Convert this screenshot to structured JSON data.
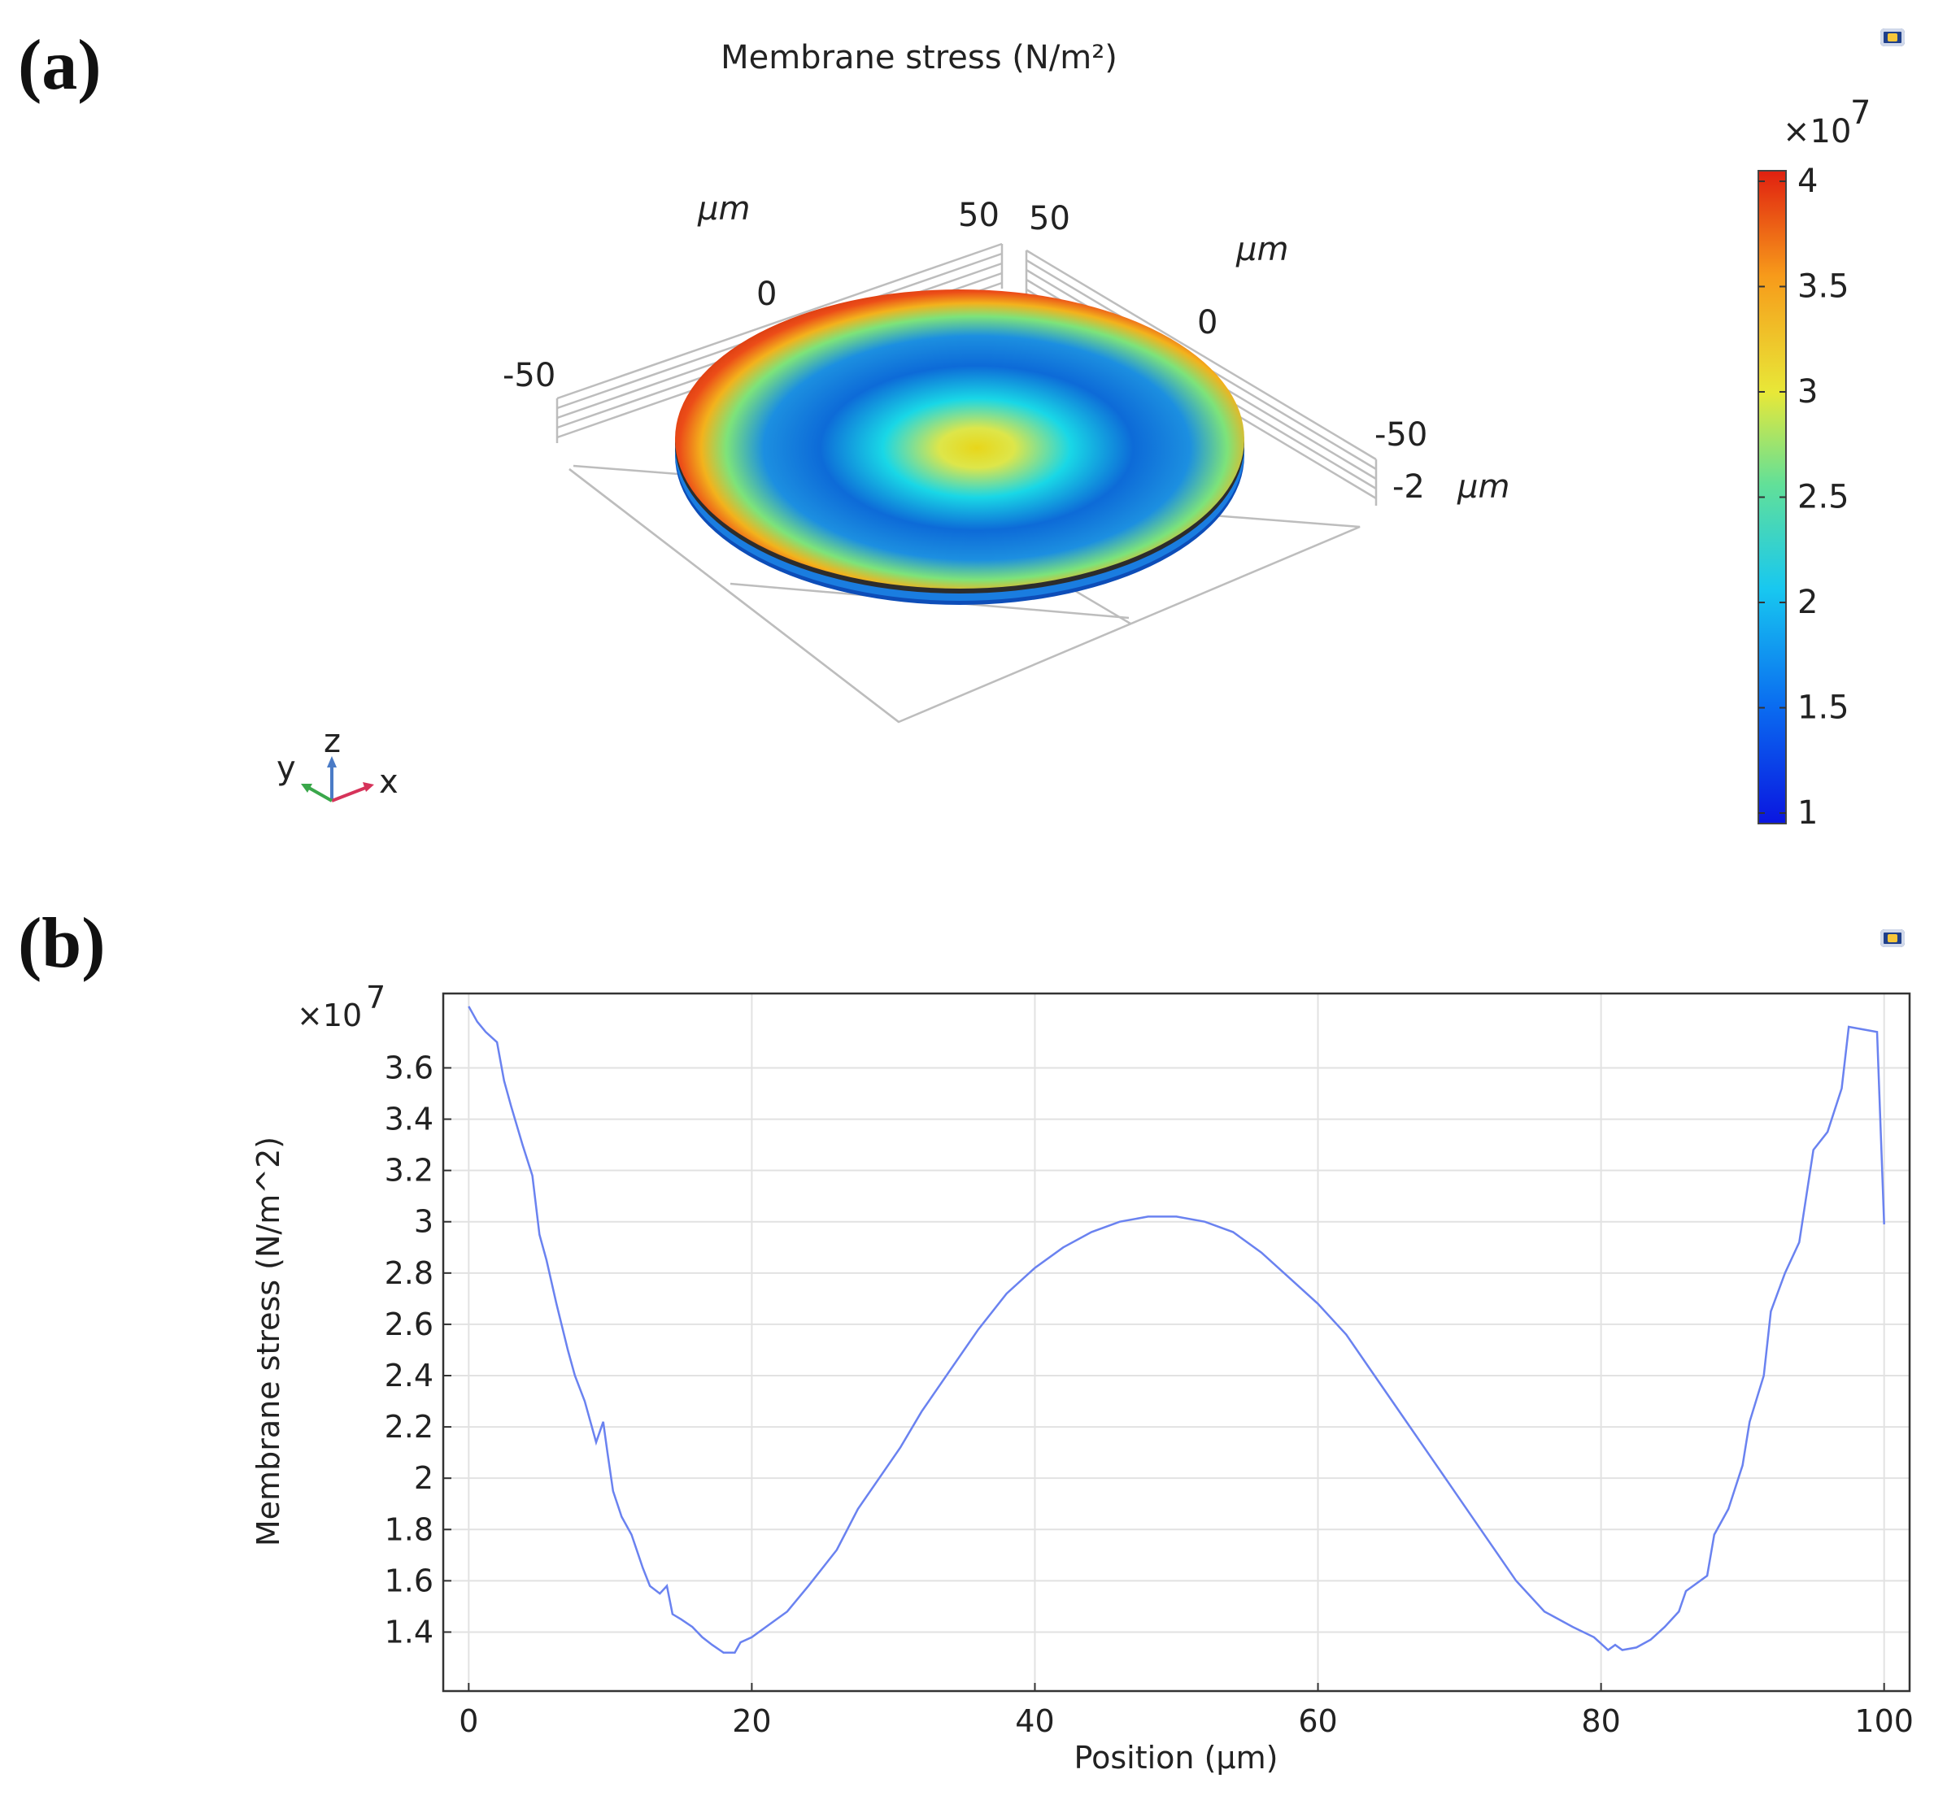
{
  "panels": {
    "a_label": "(a)",
    "b_label": "(b)"
  },
  "panel_a": {
    "title": "Membrane stress (N/m²)",
    "axes": {
      "x_ticks": [
        "-50",
        "0",
        "50"
      ],
      "y_ticks": [
        "50",
        "0",
        "-50"
      ],
      "z_tick": "-2",
      "unit": "μm",
      "triad": {
        "x": "x",
        "y": "y",
        "z": "z"
      }
    },
    "colorbar": {
      "multiplier": "×10",
      "exponent": "7",
      "ticks": [
        "4",
        "3.5",
        "3",
        "2.5",
        "2",
        "1.5",
        "1"
      ],
      "range": [
        0.95,
        4.05
      ],
      "colors": [
        "#0a16e0",
        "#0a6cf0",
        "#18c8f0",
        "#62e098",
        "#e8e838",
        "#f79a1a",
        "#e02010"
      ]
    },
    "disk_colors": {
      "center": "#e2e23a",
      "mid": "#19d7e6",
      "ring": "#0d5bd0",
      "rim": "#f05a18"
    }
  },
  "chart_data": {
    "type": "line",
    "title": "",
    "xlabel": "Position (μm)",
    "ylabel": "Membrane stress   (N/m^2)",
    "multiplier": "×10",
    "multiplier_exp": "7",
    "xlim": [
      -1.8,
      101.8
    ],
    "ylim": [
      1.17,
      3.89
    ],
    "x_ticks": [
      0,
      20,
      40,
      60,
      80,
      100
    ],
    "y_ticks": [
      1.4,
      1.6,
      1.8,
      2.0,
      2.2,
      2.4,
      2.6,
      2.8,
      3.0,
      3.2,
      3.4,
      3.6
    ],
    "y_tick_labels": [
      "1.4",
      "1.6",
      "1.8",
      "2",
      "2.2",
      "2.4",
      "2.6",
      "2.8",
      "3",
      "3.2",
      "3.4",
      "3.6"
    ],
    "grid": true,
    "series": [
      {
        "name": "Membrane stress",
        "color": "#6a82f0",
        "x": [
          0,
          0.6,
          1.2,
          2.0,
          2.5,
          3.0,
          3.8,
          4.5,
          5.0,
          5.5,
          6.2,
          7.0,
          7.5,
          8.2,
          9.0,
          9.5,
          9.8,
          10.2,
          10.8,
          11.5,
          12.3,
          12.8,
          13.5,
          14.0,
          14.4,
          15.0,
          15.8,
          16.5,
          17.2,
          18.0,
          18.8,
          19.2,
          20.0,
          21.0,
          22.5,
          24.0,
          26.0,
          27.5,
          29.0,
          30.5,
          32.0,
          34.0,
          36.0,
          38.0,
          40.0,
          42.0,
          44.0,
          46.0,
          48.0,
          50.0,
          52.0,
          54.0,
          56.0,
          58.0,
          60.0,
          62.0,
          64.0,
          66.0,
          68.0,
          70.0,
          72.0,
          74.0,
          76.0,
          78.0,
          79.5,
          80.5,
          81.0,
          81.5,
          82.5,
          83.5,
          84.5,
          85.5,
          86.0,
          86.5,
          87.5,
          88.0,
          89.0,
          90.0,
          90.5,
          91.5,
          92.0,
          93.0,
          94.0,
          94.5,
          95.0,
          96.0,
          97.0,
          97.5,
          99.5,
          100.0
        ],
        "y": [
          3.84,
          3.78,
          3.74,
          3.7,
          3.55,
          3.45,
          3.3,
          3.18,
          2.95,
          2.85,
          2.68,
          2.5,
          2.4,
          2.3,
          2.14,
          2.22,
          2.1,
          1.95,
          1.85,
          1.78,
          1.65,
          1.58,
          1.55,
          1.58,
          1.47,
          1.45,
          1.42,
          1.38,
          1.35,
          1.32,
          1.32,
          1.36,
          1.38,
          1.42,
          1.48,
          1.58,
          1.72,
          1.88,
          2.0,
          2.12,
          2.26,
          2.42,
          2.58,
          2.72,
          2.82,
          2.9,
          2.96,
          3.0,
          3.02,
          3.02,
          3.0,
          2.96,
          2.88,
          2.78,
          2.68,
          2.56,
          2.4,
          2.24,
          2.08,
          1.92,
          1.76,
          1.6,
          1.48,
          1.42,
          1.38,
          1.33,
          1.35,
          1.33,
          1.34,
          1.37,
          1.42,
          1.48,
          1.56,
          1.58,
          1.62,
          1.78,
          1.88,
          2.05,
          2.22,
          2.4,
          2.65,
          2.8,
          2.92,
          3.1,
          3.28,
          3.35,
          3.52,
          3.76,
          3.74,
          2.99
        ]
      }
    ]
  }
}
